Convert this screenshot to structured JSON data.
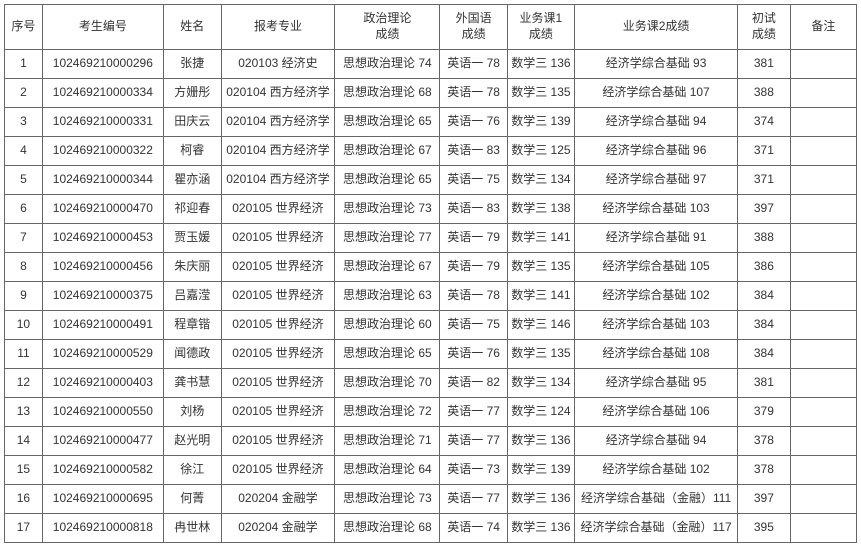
{
  "columns": [
    "序号",
    "考生编号",
    "姓名",
    "报考专业",
    "政治理论\n成绩",
    "外国语\n成绩",
    "业务课1\n成绩",
    "业务课2成绩",
    "初试\n成绩",
    "备注"
  ],
  "rows": [
    [
      "1",
      "102469210000296",
      "张捷",
      "020103 经济史",
      "思想政治理论 74",
      "英语一 78",
      "数学三 136",
      "经济学综合基础 93",
      "381",
      ""
    ],
    [
      "2",
      "102469210000334",
      "方姗彤",
      "020104 西方经济学",
      "思想政治理论 68",
      "英语一 78",
      "数学三 135",
      "经济学综合基础 107",
      "388",
      ""
    ],
    [
      "3",
      "102469210000331",
      "田庆云",
      "020104 西方经济学",
      "思想政治理论 65",
      "英语一 76",
      "数学三 139",
      "经济学综合基础 94",
      "374",
      ""
    ],
    [
      "4",
      "102469210000322",
      "柯睿",
      "020104 西方经济学",
      "思想政治理论 67",
      "英语一 83",
      "数学三 125",
      "经济学综合基础 96",
      "371",
      ""
    ],
    [
      "5",
      "102469210000344",
      "瞿亦涵",
      "020104 西方经济学",
      "思想政治理论 65",
      "英语一 75",
      "数学三 134",
      "经济学综合基础 97",
      "371",
      ""
    ],
    [
      "6",
      "102469210000470",
      "祁迎春",
      "020105 世界经济",
      "思想政治理论 73",
      "英语一 83",
      "数学三 138",
      "经济学综合基础 103",
      "397",
      ""
    ],
    [
      "7",
      "102469210000453",
      "贾玉媛",
      "020105 世界经济",
      "思想政治理论 77",
      "英语一 79",
      "数学三 141",
      "经济学综合基础 91",
      "388",
      ""
    ],
    [
      "8",
      "102469210000456",
      "朱庆丽",
      "020105 世界经济",
      "思想政治理论 67",
      "英语一 79",
      "数学三 135",
      "经济学综合基础 105",
      "386",
      ""
    ],
    [
      "9",
      "102469210000375",
      "吕嘉滢",
      "020105 世界经济",
      "思想政治理论 63",
      "英语一 78",
      "数学三 141",
      "经济学综合基础 102",
      "384",
      ""
    ],
    [
      "10",
      "102469210000491",
      "程章锴",
      "020105 世界经济",
      "思想政治理论 60",
      "英语一 75",
      "数学三 146",
      "经济学综合基础 103",
      "384",
      ""
    ],
    [
      "11",
      "102469210000529",
      "闻德政",
      "020105 世界经济",
      "思想政治理论 65",
      "英语一 76",
      "数学三 135",
      "经济学综合基础 108",
      "384",
      ""
    ],
    [
      "12",
      "102469210000403",
      "龚书慧",
      "020105 世界经济",
      "思想政治理论 70",
      "英语一 82",
      "数学三 134",
      "经济学综合基础 95",
      "381",
      ""
    ],
    [
      "13",
      "102469210000550",
      "刘杨",
      "020105 世界经济",
      "思想政治理论 72",
      "英语一 77",
      "数学三 124",
      "经济学综合基础 106",
      "379",
      ""
    ],
    [
      "14",
      "102469210000477",
      "赵光明",
      "020105 世界经济",
      "思想政治理论 71",
      "英语一 77",
      "数学三 136",
      "经济学综合基础 94",
      "378",
      ""
    ],
    [
      "15",
      "102469210000582",
      "徐江",
      "020105 世界经济",
      "思想政治理论 64",
      "英语一 73",
      "数学三 139",
      "经济学综合基础 102",
      "378",
      ""
    ],
    [
      "16",
      "102469210000695",
      "何菁",
      "020204 金融学",
      "思想政治理论 73",
      "英语一 77",
      "数学三 136",
      "经济学综合基础（金融）111",
      "397",
      ""
    ],
    [
      "17",
      "102469210000818",
      "冉世林",
      "020204 金融学",
      "思想政治理论 68",
      "英语一 74",
      "数学三 136",
      "经济学综合基础（金融）117",
      "395",
      ""
    ]
  ]
}
